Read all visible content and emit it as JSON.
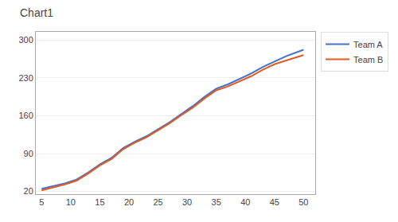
{
  "chart_data": {
    "type": "line",
    "title": "Chart1",
    "x": [
      5,
      7,
      9,
      11,
      13,
      15,
      17,
      19,
      21,
      23,
      25,
      27,
      29,
      31,
      33,
      35,
      37,
      39,
      41,
      43,
      45,
      47,
      50
    ],
    "series": [
      {
        "name": "Team A",
        "color": "#4472C4",
        "values": [
          25,
          30,
          35,
          42,
          55,
          70,
          82,
          100,
          112,
          122,
          135,
          148,
          163,
          178,
          195,
          210,
          218,
          228,
          238,
          250,
          260,
          270,
          282
        ]
      },
      {
        "name": "Team B",
        "color": "#E05A28",
        "values": [
          22,
          27,
          33,
          40,
          53,
          68,
          80,
          98,
          110,
          120,
          133,
          146,
          161,
          175,
          192,
          207,
          214,
          224,
          233,
          245,
          255,
          262,
          272
        ]
      }
    ],
    "xlim": [
      4,
      52
    ],
    "xticks": [
      5,
      10,
      15,
      20,
      25,
      30,
      35,
      40,
      45,
      50
    ],
    "ylim": [
      15,
      315
    ],
    "yticks": [
      20,
      90,
      160,
      230,
      300
    ],
    "grid": true,
    "legend": "right"
  }
}
